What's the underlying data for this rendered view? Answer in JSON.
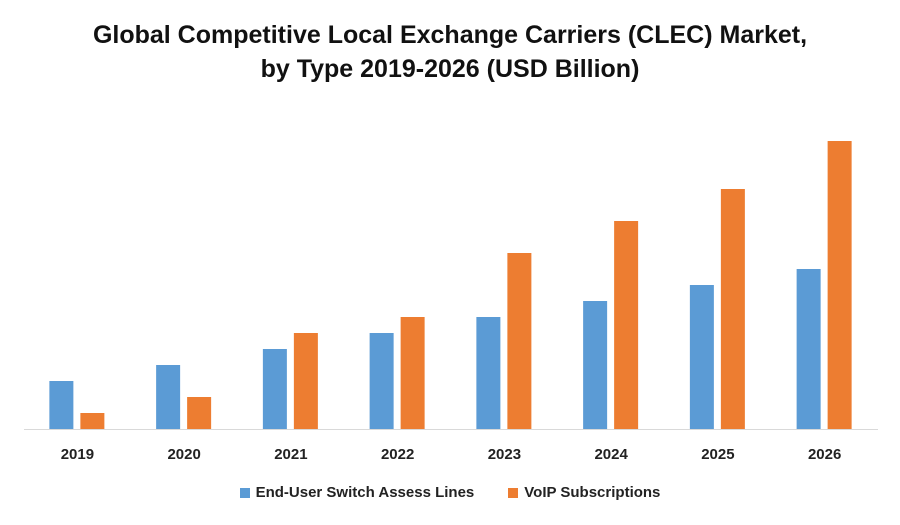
{
  "chart_data": {
    "type": "bar",
    "title_line1": "Global Competitive Local Exchange Carriers (CLEC) Market,",
    "title_line2": "by Type 2019-2026 (USD Billion)",
    "xlabel": "",
    "ylabel": "",
    "categories": [
      "2019",
      "2020",
      "2021",
      "2022",
      "2023",
      "2024",
      "2025",
      "2026"
    ],
    "series": [
      {
        "name": "End-User Switch Assess Lines",
        "color": "#5B9BD5",
        "values": [
          3.0,
          4.0,
          5.0,
          6.0,
          7.0,
          8.0,
          9.0,
          10.0
        ]
      },
      {
        "name": "VoIP Subscriptions",
        "color": "#ED7D31",
        "values": [
          1.0,
          2.0,
          6.0,
          7.0,
          11.0,
          13.0,
          15.0,
          18.0
        ]
      }
    ],
    "ylim": [
      0,
      20
    ],
    "grid": false,
    "legend_position": "bottom"
  }
}
